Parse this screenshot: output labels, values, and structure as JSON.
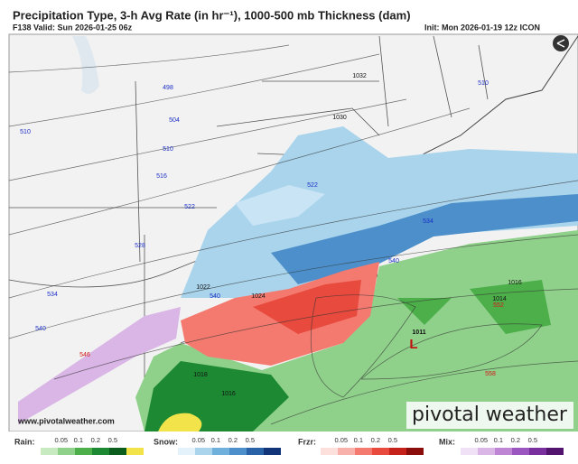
{
  "header": {
    "title": "Precipitation Type, 3-h Avg Rate (in hr⁻¹), 1000-500 mb Thickness (dam)",
    "valid": "F138 Valid: Sun 2026-01-25 06z",
    "init": "Init: Mon 2026-01-19 12z ICON"
  },
  "map": {
    "thickness_labels": [
      "498",
      "504",
      "510",
      "516",
      "522",
      "528",
      "534",
      "540",
      "546",
      "510",
      "510",
      "534",
      "540",
      "522",
      "540",
      "552",
      "558"
    ],
    "pressure_labels": [
      "1032",
      "1030",
      "1022",
      "1024",
      "1018",
      "1016",
      "1016",
      "1014",
      "1011"
    ],
    "low_label": "L",
    "website": "www.pivotalweather.com",
    "brand": "pivotal weather"
  },
  "legend": [
    {
      "label": "Rain:",
      "ticks": [
        0.05,
        0.1,
        0.2,
        0.5
      ]
    },
    {
      "label": "Snow:",
      "ticks": [
        0.05,
        0.1,
        0.2,
        0.5
      ]
    },
    {
      "label": "Frzr:",
      "ticks": [
        0.05,
        0.1,
        0.2,
        0.5
      ]
    },
    {
      "label": "Mix:",
      "ticks": [
        0.05,
        0.1,
        0.2,
        0.5
      ]
    }
  ]
}
